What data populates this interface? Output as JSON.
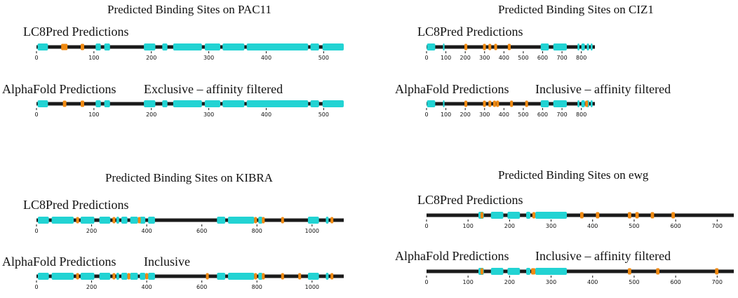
{
  "colors": {
    "backbone": "#1a1a1a",
    "disorder": "#22d3d3",
    "site": "#f08a12"
  },
  "panels": [
    {
      "title": "Predicted Binding Sites on PAC11",
      "axis_max": 535,
      "ticks": [
        0,
        100,
        200,
        300,
        400,
        500
      ],
      "rows": [
        {
          "label": "LC8Pred Predictions",
          "note": "",
          "disorder": [
            [
              2,
              20
            ],
            [
              103,
              112
            ],
            [
              118,
              128
            ],
            [
              187,
              207
            ],
            [
              219,
              228
            ],
            [
              238,
              288
            ],
            [
              293,
              320
            ],
            [
              324,
              362
            ],
            [
              366,
              473
            ],
            [
              477,
              492
            ],
            [
              498,
              535
            ]
          ],
          "sites": [
            [
              43,
              54
            ],
            [
              77,
              83
            ]
          ]
        },
        {
          "label": "AlphaFold Predictions",
          "note": "Exclusive – affinity filtered",
          "disorder": [
            [
              2,
              20
            ],
            [
              103,
              112
            ],
            [
              118,
              128
            ],
            [
              187,
              207
            ],
            [
              219,
              228
            ],
            [
              238,
              288
            ],
            [
              293,
              320
            ],
            [
              324,
              362
            ],
            [
              366,
              473
            ],
            [
              477,
              492
            ],
            [
              498,
              535
            ]
          ],
          "sites": [
            [
              46,
              52
            ],
            [
              77,
              83
            ]
          ]
        }
      ]
    },
    {
      "title": "Predicted Binding Sites on CIZ1",
      "axis_max": 870,
      "ticks": [
        0,
        100,
        200,
        300,
        400,
        500,
        600,
        700,
        800
      ],
      "rows": [
        {
          "label": "LC8Pred Predictions",
          "note": "",
          "disorder": [
            [
              2,
              45
            ],
            [
              85,
              93
            ],
            [
              590,
              632
            ],
            [
              655,
              725
            ],
            [
              780,
              790
            ],
            [
              800,
              818
            ],
            [
              828,
              840
            ],
            [
              848,
              858
            ]
          ],
          "sites": [
            [
              196,
              203
            ],
            [
              292,
              299
            ],
            [
              320,
              327
            ],
            [
              350,
              357
            ],
            [
              420,
              435
            ]
          ]
        },
        {
          "label": "AlphaFold Predictions",
          "note": "Inclusive – affinity filtered",
          "disorder": [
            [
              2,
              45
            ],
            [
              85,
              93
            ],
            [
              590,
              632
            ],
            [
              655,
              725
            ],
            [
              780,
              790
            ],
            [
              800,
              818
            ],
            [
              828,
              840
            ],
            [
              848,
              858
            ]
          ],
          "sites": [
            [
              196,
              203
            ],
            [
              292,
              299
            ],
            [
              320,
              327
            ],
            [
              344,
              351
            ],
            [
              360,
              367
            ],
            [
              432,
              439
            ],
            [
              510,
              517
            ],
            [
              820,
              827
            ]
          ]
        }
      ]
    },
    {
      "title": "Predicted Binding Sites on KIBRA",
      "axis_max": 1115,
      "ticks": [
        0,
        200,
        400,
        600,
        800,
        1000
      ],
      "rows": [
        {
          "label": "LC8Pred Predictions",
          "note": "",
          "disorder": [
            [
              5,
              45
            ],
            [
              55,
              135
            ],
            [
              160,
              210
            ],
            [
              228,
              268
            ],
            [
              290,
              300
            ],
            [
              308,
              330
            ],
            [
              340,
              368
            ],
            [
              375,
              395
            ],
            [
              405,
              430
            ],
            [
              655,
              685
            ],
            [
              695,
              790
            ],
            [
              805,
              820
            ],
            [
              985,
              1025
            ],
            [
              1050,
              1060
            ]
          ],
          "sites": [
            [
              144,
              152
            ],
            [
              276,
              284
            ],
            [
              368,
              375
            ],
            [
              790,
              798
            ],
            [
              818,
              826
            ],
            [
              888,
              896
            ],
            [
              1067,
              1075
            ]
          ]
        },
        {
          "label": "AlphaFold Predictions",
          "note": "Inclusive",
          "disorder": [
            [
              5,
              45
            ],
            [
              55,
              135
            ],
            [
              160,
              210
            ],
            [
              228,
              268
            ],
            [
              290,
              300
            ],
            [
              308,
              330
            ],
            [
              340,
              368
            ],
            [
              375,
              395
            ],
            [
              405,
              430
            ],
            [
              655,
              685
            ],
            [
              695,
              790
            ],
            [
              805,
              820
            ],
            [
              985,
              1025
            ],
            [
              1050,
              1060
            ]
          ],
          "sites": [
            [
              144,
              152
            ],
            [
              276,
              284
            ],
            [
              330,
              338
            ],
            [
              395,
              405
            ],
            [
              615,
              623
            ],
            [
              790,
              798
            ],
            [
              818,
              826
            ],
            [
              888,
              896
            ],
            [
              950,
              958
            ],
            [
              1067,
              1075
            ]
          ]
        }
      ]
    },
    {
      "title": "Predicted Binding Sites on ewg",
      "axis_max": 740,
      "ticks": [
        0,
        100,
        200,
        300,
        400,
        500,
        600,
        700
      ],
      "rows": [
        {
          "label": "LC8Pred Predictions",
          "note": "",
          "disorder": [
            [
              125,
              138
            ],
            [
              155,
              185
            ],
            [
              195,
              225
            ],
            [
              240,
              250
            ],
            [
              262,
              338
            ]
          ],
          "sites": [
            [
              130,
              134
            ],
            [
              255,
              262
            ],
            [
              370,
              378
            ],
            [
              408,
              416
            ],
            [
              485,
              493
            ],
            [
              503,
              511
            ],
            [
              540,
              548
            ],
            [
              590,
              598
            ]
          ]
        },
        {
          "label": "AlphaFold Predictions",
          "note": "Inclusive – affinity filtered",
          "disorder": [
            [
              125,
              138
            ],
            [
              155,
              185
            ],
            [
              195,
              225
            ],
            [
              240,
              250
            ],
            [
              262,
              338
            ]
          ],
          "sites": [
            [
              130,
              134
            ],
            [
              252,
              262
            ],
            [
              485,
              493
            ],
            [
              553,
              561
            ],
            [
              695,
              703
            ]
          ]
        }
      ]
    }
  ]
}
